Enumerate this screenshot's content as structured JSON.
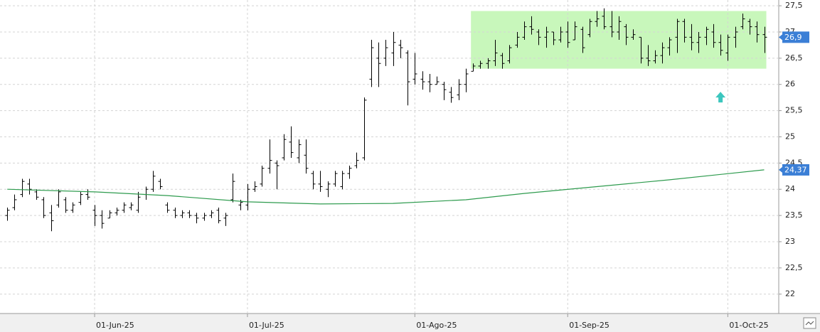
{
  "chart_data": {
    "type": "ohlc",
    "x": [
      "2025-05-15",
      "2025-05-16",
      "2025-05-19",
      "2025-05-20",
      "2025-05-21",
      "2025-05-22",
      "2025-05-23",
      "2025-05-26",
      "2025-05-27",
      "2025-05-28",
      "2025-05-29",
      "2025-05-30",
      "2025-06-02",
      "2025-06-03",
      "2025-06-04",
      "2025-06-05",
      "2025-06-06",
      "2025-06-09",
      "2025-06-10",
      "2025-06-11",
      "2025-06-12",
      "2025-06-13",
      "2025-06-16",
      "2025-06-17",
      "2025-06-18",
      "2025-06-19",
      "2025-06-20",
      "2025-06-23",
      "2025-06-24",
      "2025-06-25",
      "2025-06-26",
      "2025-06-27",
      "2025-06-30",
      "2025-07-01",
      "2025-07-02",
      "2025-07-03",
      "2025-07-04",
      "2025-07-07",
      "2025-07-08",
      "2025-07-09",
      "2025-07-10",
      "2025-07-11",
      "2025-07-14",
      "2025-07-15",
      "2025-07-16",
      "2025-07-17",
      "2025-07-18",
      "2025-07-21",
      "2025-07-22",
      "2025-07-23",
      "2025-07-24",
      "2025-07-25",
      "2025-07-28",
      "2025-07-29",
      "2025-07-30",
      "2025-07-31",
      "2025-08-01",
      "2025-08-04",
      "2025-08-05",
      "2025-08-06",
      "2025-08-07",
      "2025-08-08",
      "2025-08-11",
      "2025-08-12",
      "2025-08-13",
      "2025-08-14",
      "2025-08-15",
      "2025-08-18",
      "2025-08-19",
      "2025-08-20",
      "2025-08-21",
      "2025-08-22",
      "2025-08-25",
      "2025-08-26",
      "2025-08-27",
      "2025-08-28",
      "2025-08-29",
      "2025-09-01",
      "2025-09-02",
      "2025-09-03",
      "2025-09-04",
      "2025-09-05",
      "2025-09-08",
      "2025-09-09",
      "2025-09-10",
      "2025-09-11",
      "2025-09-12",
      "2025-09-15",
      "2025-09-16",
      "2025-09-17",
      "2025-09-18",
      "2025-09-19",
      "2025-09-22",
      "2025-09-23",
      "2025-09-24",
      "2025-09-25",
      "2025-09-26",
      "2025-09-29",
      "2025-09-30",
      "2025-10-01",
      "2025-10-02",
      "2025-10-03",
      "2025-10-06",
      "2025-10-07",
      "2025-10-08"
    ],
    "open": [
      23.5,
      23.65,
      23.9,
      24.1,
      23.95,
      23.8,
      23.55,
      23.7,
      23.8,
      23.6,
      23.75,
      23.9,
      23.6,
      23.5,
      23.45,
      23.55,
      23.6,
      23.65,
      23.6,
      23.9,
      24.0,
      24.15,
      23.7,
      23.6,
      23.5,
      23.55,
      23.5,
      23.45,
      23.5,
      23.6,
      23.45,
      23.8,
      23.7,
      23.7,
      24.0,
      24.1,
      24.4,
      24.5,
      24.6,
      24.9,
      24.6,
      24.65,
      24.3,
      24.1,
      24.0,
      24.1,
      24.05,
      24.3,
      24.45,
      24.6,
      26.1,
      26.5,
      26.5,
      26.6,
      26.75,
      26.6,
      26.1,
      26.1,
      26.05,
      26.0,
      26.0,
      25.85,
      25.8,
      26.0,
      26.25,
      26.35,
      26.4,
      26.45,
      26.55,
      26.45,
      26.75,
      26.9,
      27.1,
      27.0,
      26.9,
      27.0,
      26.85,
      27.0,
      26.85,
      27.05,
      26.95,
      27.2,
      27.3,
      27.1,
      27.0,
      27.1,
      26.9,
      26.9,
      26.5,
      26.45,
      26.55,
      26.7,
      26.9,
      27.2,
      26.9,
      26.8,
      26.9,
      27.0,
      26.8,
      26.6,
      26.9,
      27.1,
      27.2,
      27.1,
      26.95
    ],
    "high": [
      23.65,
      23.9,
      24.2,
      24.2,
      24.0,
      23.85,
      23.7,
      24.0,
      23.85,
      23.75,
      23.95,
      24.0,
      23.7,
      23.6,
      23.6,
      23.65,
      23.75,
      23.75,
      23.95,
      24.05,
      24.35,
      24.2,
      23.75,
      23.65,
      23.6,
      23.6,
      23.55,
      23.55,
      23.6,
      23.65,
      23.55,
      24.3,
      23.8,
      24.1,
      24.15,
      24.45,
      24.95,
      24.55,
      25.05,
      25.2,
      24.95,
      24.95,
      24.35,
      24.35,
      24.15,
      24.35,
      24.35,
      24.45,
      24.7,
      25.75,
      26.85,
      26.8,
      26.85,
      27.0,
      26.85,
      26.65,
      26.6,
      26.25,
      26.2,
      26.15,
      26.05,
      25.95,
      26.1,
      26.3,
      26.4,
      26.45,
      26.5,
      26.85,
      26.6,
      26.75,
      27.0,
      27.2,
      27.3,
      27.05,
      27.1,
      27.0,
      27.1,
      27.2,
      27.2,
      27.1,
      27.25,
      27.4,
      27.45,
      27.4,
      27.3,
      27.15,
      27.05,
      26.9,
      26.75,
      26.65,
      26.8,
      26.9,
      27.25,
      27.25,
      27.15,
      27.0,
      27.1,
      27.15,
      26.95,
      26.95,
      27.1,
      27.35,
      27.25,
      27.2,
      27.1
    ],
    "low": [
      23.4,
      23.6,
      23.85,
      23.9,
      23.8,
      23.45,
      23.2,
      23.65,
      23.55,
      23.55,
      23.7,
      23.8,
      23.3,
      23.25,
      23.45,
      23.5,
      23.55,
      23.6,
      23.55,
      23.8,
      23.95,
      24.0,
      23.55,
      23.45,
      23.45,
      23.45,
      23.35,
      23.4,
      23.45,
      23.35,
      23.3,
      23.75,
      23.6,
      23.6,
      23.95,
      24.05,
      24.3,
      24.0,
      24.55,
      24.6,
      24.5,
      24.3,
      24.0,
      23.95,
      23.85,
      24.05,
      24.0,
      24.2,
      24.4,
      24.55,
      25.95,
      25.95,
      26.35,
      26.35,
      26.5,
      25.6,
      26.0,
      25.9,
      25.85,
      26.0,
      25.7,
      25.65,
      25.7,
      25.85,
      26.25,
      26.3,
      26.3,
      26.35,
      26.3,
      26.4,
      26.7,
      26.85,
      26.95,
      26.75,
      26.7,
      26.75,
      26.8,
      26.7,
      26.85,
      26.6,
      26.9,
      27.1,
      27.05,
      26.9,
      26.85,
      26.75,
      26.85,
      26.4,
      26.35,
      26.4,
      26.4,
      26.55,
      26.6,
      26.8,
      26.65,
      26.6,
      26.75,
      26.7,
      26.55,
      26.45,
      26.7,
      27.05,
      26.95,
      26.8,
      26.6
    ],
    "close": [
      23.6,
      23.8,
      24.15,
      24.0,
      23.85,
      23.5,
      23.4,
      23.95,
      23.6,
      23.7,
      23.9,
      23.85,
      23.5,
      23.35,
      23.55,
      23.6,
      23.7,
      23.7,
      23.85,
      24.0,
      24.25,
      24.05,
      23.6,
      23.5,
      23.55,
      23.5,
      23.45,
      23.5,
      23.55,
      23.4,
      23.5,
      24.15,
      23.75,
      24.0,
      24.05,
      24.4,
      24.55,
      24.45,
      24.95,
      24.7,
      24.85,
      24.4,
      24.1,
      24.05,
      24.1,
      24.3,
      24.3,
      24.4,
      24.55,
      25.7,
      26.7,
      26.4,
      26.7,
      26.8,
      26.7,
      26.05,
      26.2,
      26.05,
      26.0,
      26.05,
      25.9,
      25.75,
      26.0,
      26.2,
      26.35,
      26.4,
      26.45,
      26.6,
      26.4,
      26.7,
      26.9,
      27.1,
      27.05,
      26.9,
      27.0,
      26.85,
      27.0,
      26.8,
      27.1,
      26.7,
      27.2,
      27.25,
      27.1,
      27.0,
      27.2,
      26.9,
      26.95,
      26.5,
      26.45,
      26.55,
      26.7,
      26.85,
      27.2,
      26.9,
      26.8,
      26.9,
      27.05,
      26.8,
      26.65,
      26.9,
      27.0,
      27.25,
      27.1,
      26.95,
      26.9
    ],
    "color": "#000000",
    "last_label": "26,9",
    "last_label_color": "#3b7fd6",
    "series": [
      {
        "type": "line",
        "color": "#2e9b4e",
        "x": [
          "2025-05-15",
          "2025-06-02",
          "2025-06-16",
          "2025-07-01",
          "2025-07-15",
          "2025-07-29",
          "2025-08-12",
          "2025-08-22",
          "2025-09-05",
          "2025-09-19",
          "2025-10-08"
        ],
        "values": [
          24.0,
          23.95,
          23.88,
          23.76,
          23.72,
          23.73,
          23.8,
          23.92,
          24.05,
          24.18,
          24.37
        ],
        "last_label": "24,37"
      }
    ],
    "highlight": {
      "x": [
        "2025-08-13",
        "2025-10-08"
      ],
      "y": [
        26.3,
        27.4
      ],
      "color": "#c8f7bb"
    },
    "arrow": {
      "x": "2025-09-30",
      "y": 25.75,
      "color": "#3cc6be"
    },
    "xlim": [
      "2025-05-14",
      "2025-10-10"
    ],
    "xticks": [
      {
        "value": "2025-06-01",
        "label": "01-Jun-25"
      },
      {
        "value": "2025-07-01",
        "label": "01-Jul-25"
      },
      {
        "value": "2025-08-01",
        "label": "01-Ago-25"
      },
      {
        "value": "2025-09-01",
        "label": "01-Sep-25"
      },
      {
        "value": "2025-10-01",
        "label": "01-Oct-25"
      }
    ],
    "ylim": [
      21.63,
      27.61
    ],
    "yticks": [
      22,
      {
        "value": 22.5,
        "label": "22,5"
      },
      23,
      {
        "value": 23.5,
        "label": "23,5"
      },
      24,
      {
        "value": 24.5,
        "label": "24,5"
      },
      25,
      {
        "value": 25.5,
        "label": "25,5"
      },
      26,
      {
        "value": 26.5,
        "label": "26,5"
      },
      27,
      {
        "value": 27.5,
        "label": "27,5"
      }
    ],
    "grid": true
  }
}
